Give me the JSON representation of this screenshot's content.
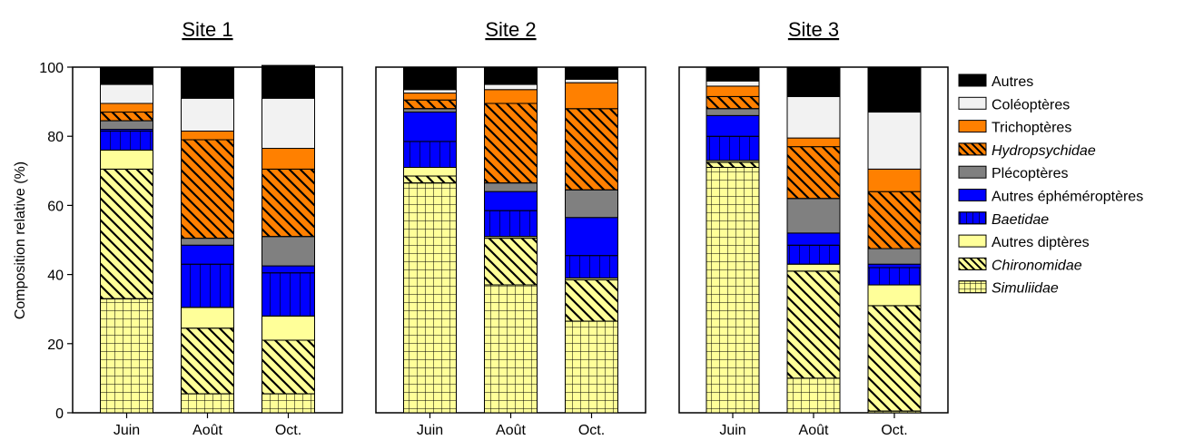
{
  "chart_data": {
    "type": "bar",
    "stacked": true,
    "ylabel": "Composition relative  (%)",
    "ylim": [
      0,
      100
    ],
    "yticks": [
      "0",
      "20",
      "40",
      "60",
      "80",
      "100"
    ],
    "categories": [
      "Juin",
      "Août",
      "Oct."
    ],
    "legend_position": "right",
    "series_meta": [
      {
        "name": "Simuliidae",
        "italic": true,
        "color": "#ffff99",
        "pattern": "grid"
      },
      {
        "name": "Chironomidae",
        "italic": true,
        "color": "#ffff99",
        "pattern": "diag"
      },
      {
        "name": "Autres diptères",
        "italic": false,
        "color": "#ffff99",
        "pattern": "none"
      },
      {
        "name": "Baetidae",
        "italic": true,
        "color": "#0000ff",
        "pattern": "vert"
      },
      {
        "name": "Autres éphéméroptères",
        "italic": false,
        "color": "#0000ff",
        "pattern": "none"
      },
      {
        "name": "Plécoptères",
        "italic": false,
        "color": "#808080",
        "pattern": "none"
      },
      {
        "name": "Hydropsychidae",
        "italic": true,
        "color": "#ff8000",
        "pattern": "diag"
      },
      {
        "name": "Trichoptères",
        "italic": false,
        "color": "#ff8000",
        "pattern": "none"
      },
      {
        "name": "Coléoptères",
        "italic": false,
        "color": "#f2f2f2",
        "pattern": "none"
      },
      {
        "name": "Autres",
        "italic": false,
        "color": "#000000",
        "pattern": "none"
      }
    ],
    "panels": [
      {
        "title": "Site 1",
        "stacks": [
          [
            33,
            37.5,
            5.5,
            5.5,
            0.5,
            2.5,
            2.5,
            2.5,
            5.5,
            5
          ],
          [
            5.5,
            19,
            6,
            12.5,
            5.5,
            2,
            28.5,
            2.5,
            9.5,
            9
          ],
          [
            5.5,
            15.5,
            7,
            12.5,
            2,
            8.5,
            19.5,
            6,
            14.5,
            9.5
          ]
        ]
      },
      {
        "title": "Site 2",
        "stacks": [
          [
            66.5,
            2,
            2.5,
            7.5,
            8.5,
            1,
            2.5,
            2,
            1,
            6.5
          ],
          [
            37,
            13.5,
            0.5,
            7.5,
            5.5,
            2.5,
            23,
            4,
            1.5,
            5
          ],
          [
            26.5,
            12,
            0.5,
            6.5,
            11,
            8,
            23.5,
            7.5,
            1,
            3.5
          ]
        ]
      },
      {
        "title": "Site 3",
        "stacks": [
          [
            71,
            1.5,
            0.5,
            7,
            6,
            2,
            3.5,
            3,
            1.5,
            4
          ],
          [
            10,
            31,
            2,
            5.5,
            3.5,
            10,
            15,
            2.5,
            12,
            8.5
          ],
          [
            0.5,
            30.5,
            6,
            5,
            1,
            4.5,
            16.5,
            6.5,
            16.5,
            13
          ]
        ]
      }
    ]
  }
}
